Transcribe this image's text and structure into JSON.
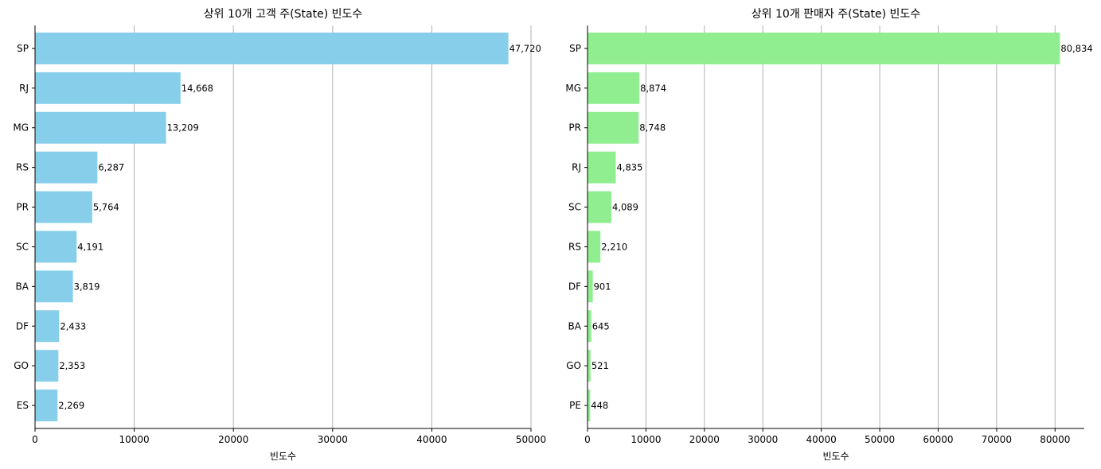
{
  "chart_data": [
    {
      "type": "bar",
      "orientation": "horizontal",
      "title": "상위 10개 고객 주(State) 빈도수",
      "xlabel": "빈도수",
      "ylabel": "",
      "categories": [
        "SP",
        "RJ",
        "MG",
        "RS",
        "PR",
        "SC",
        "BA",
        "DF",
        "GO",
        "ES"
      ],
      "values": [
        47720,
        14668,
        13209,
        6287,
        5764,
        4191,
        3819,
        2433,
        2353,
        2269
      ],
      "value_labels": [
        "47,720",
        "14,668",
        "13,209",
        "6,287",
        "5,764",
        "4,191",
        "3,819",
        "2,433",
        "2,353",
        "2,269"
      ],
      "xlim": [
        0,
        50000
      ],
      "xticks": [
        0,
        10000,
        20000,
        30000,
        40000,
        50000
      ],
      "xtick_labels": [
        "0",
        "10000",
        "20000",
        "30000",
        "40000",
        "50000"
      ],
      "grid": "x",
      "color": "#87ceeb"
    },
    {
      "type": "bar",
      "orientation": "horizontal",
      "title": "상위 10개 판매자 주(State) 빈도수",
      "xlabel": "빈도수",
      "ylabel": "",
      "categories": [
        "SP",
        "MG",
        "PR",
        "RJ",
        "SC",
        "RS",
        "DF",
        "BA",
        "GO",
        "PE"
      ],
      "values": [
        80834,
        8874,
        8748,
        4835,
        4089,
        2210,
        901,
        645,
        521,
        448
      ],
      "value_labels": [
        "80,834",
        "8,874",
        "8,748",
        "4,835",
        "4,089",
        "2,210",
        "901",
        "645",
        "521",
        "448"
      ],
      "xlim": [
        0,
        85000
      ],
      "xticks": [
        0,
        10000,
        20000,
        30000,
        40000,
        50000,
        60000,
        70000,
        80000
      ],
      "xtick_labels": [
        "0",
        "10000",
        "20000",
        "30000",
        "40000",
        "50000",
        "60000",
        "70000",
        "80000"
      ],
      "grid": "x",
      "color": "#90ee90"
    }
  ]
}
